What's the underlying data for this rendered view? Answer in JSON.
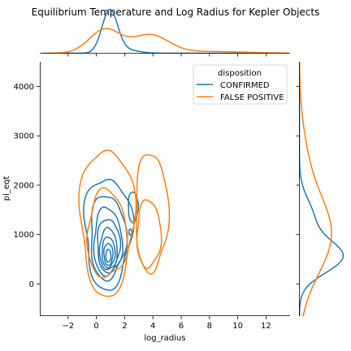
{
  "chart_data": {
    "type": "kde-jointplot",
    "title": "Equilibrium Temperature and Log Radius for Kepler Objects",
    "xlabel": "log_radius",
    "ylabel": "pl_eqt",
    "xlim": [
      -4,
      13.7
    ],
    "ylim": [
      -650,
      4500
    ],
    "x_ticks": [
      -2,
      0,
      2,
      4,
      6,
      8,
      10,
      12
    ],
    "y_ticks": [
      0,
      1000,
      2000,
      3000,
      4000
    ],
    "grid": false,
    "legend": {
      "title": "disposition",
      "placement": "top-right"
    },
    "series": [
      {
        "name": "CONFIRMED",
        "color": "#1f77b4",
        "contours": [
          {
            "cx": 0.8,
            "cy": 1050,
            "rx": 1.65,
            "ry": 1120,
            "wobble": 0.1,
            "phase": 0.5
          },
          {
            "cx": 2.6,
            "cy": 1560,
            "rx": 0.35,
            "ry": 310,
            "wobble": 0.05,
            "phase": 1.0
          },
          {
            "cx": 0.8,
            "cy": 950,
            "rx": 1.25,
            "ry": 850,
            "wobble": 0.08,
            "phase": 1.3
          },
          {
            "cx": 0.8,
            "cy": 850,
            "rx": 1.0,
            "ry": 680,
            "wobble": 0.07,
            "phase": 2.1
          },
          {
            "cx": 0.85,
            "cy": 780,
            "rx": 0.8,
            "ry": 540,
            "wobble": 0.06,
            "phase": 0.9
          },
          {
            "cx": 0.85,
            "cy": 700,
            "rx": 0.62,
            "ry": 420,
            "wobble": 0.05,
            "phase": 2.8
          },
          {
            "cx": 0.85,
            "cy": 640,
            "rx": 0.46,
            "ry": 310,
            "wobble": 0.05,
            "phase": 1.7
          },
          {
            "cx": 0.85,
            "cy": 600,
            "rx": 0.32,
            "ry": 220,
            "wobble": 0.04,
            "phase": 0.3
          },
          {
            "cx": 0.85,
            "cy": 570,
            "rx": 0.18,
            "ry": 130,
            "wobble": 0.03,
            "phase": 2.2
          },
          {
            "cx": 2.4,
            "cy": 1050,
            "rx": 0.1,
            "ry": 60,
            "wobble": 0.0,
            "phase": 0.0
          }
        ],
        "marginal_x": {
          "grid": [
            -3.8,
            13.6
          ],
          "bumps": [
            {
              "m": 0.95,
              "s": 0.55,
              "a": 1.0
            },
            {
              "m": 2.2,
              "s": 0.8,
              "a": 0.07
            }
          ]
        },
        "marginal_y": {
          "grid": [
            -650,
            4500
          ],
          "bumps": [
            {
              "m": 550,
              "s": 330,
              "a": 1.0
            },
            {
              "m": 1350,
              "s": 380,
              "a": 0.32
            }
          ]
        }
      },
      {
        "name": "FALSE POSITIVE",
        "color": "#ff7f0e",
        "contours": [
          {
            "cx": 0.75,
            "cy": 1280,
            "rx": 1.9,
            "ry": 1480,
            "wobble": 0.08,
            "phase": 0.2
          },
          {
            "cx": 3.9,
            "cy": 1450,
            "rx": 1.15,
            "ry": 1200,
            "wobble": 0.07,
            "phase": 1.4
          },
          {
            "cx": 3.7,
            "cy": 1010,
            "rx": 0.85,
            "ry": 680,
            "wobble": 0.06,
            "phase": 2.0
          },
          {
            "cx": 0.75,
            "cy": 1000,
            "rx": 1.4,
            "ry": 880,
            "wobble": 0.07,
            "phase": 2.6
          }
        ],
        "marginal_x": {
          "grid": [
            -3.8,
            13.6
          ],
          "bumps": [
            {
              "m": 0.6,
              "s": 1.1,
              "a": 0.55
            },
            {
              "m": 3.8,
              "s": 1.3,
              "a": 0.42
            },
            {
              "m": 8.0,
              "s": 2.5,
              "a": 0.04
            }
          ]
        },
        "marginal_y": {
          "grid": [
            -650,
            4500
          ],
          "bumps": [
            {
              "m": 1000,
              "s": 800,
              "a": 0.75
            },
            {
              "m": 2600,
              "s": 700,
              "a": 0.12
            }
          ]
        }
      }
    ]
  }
}
